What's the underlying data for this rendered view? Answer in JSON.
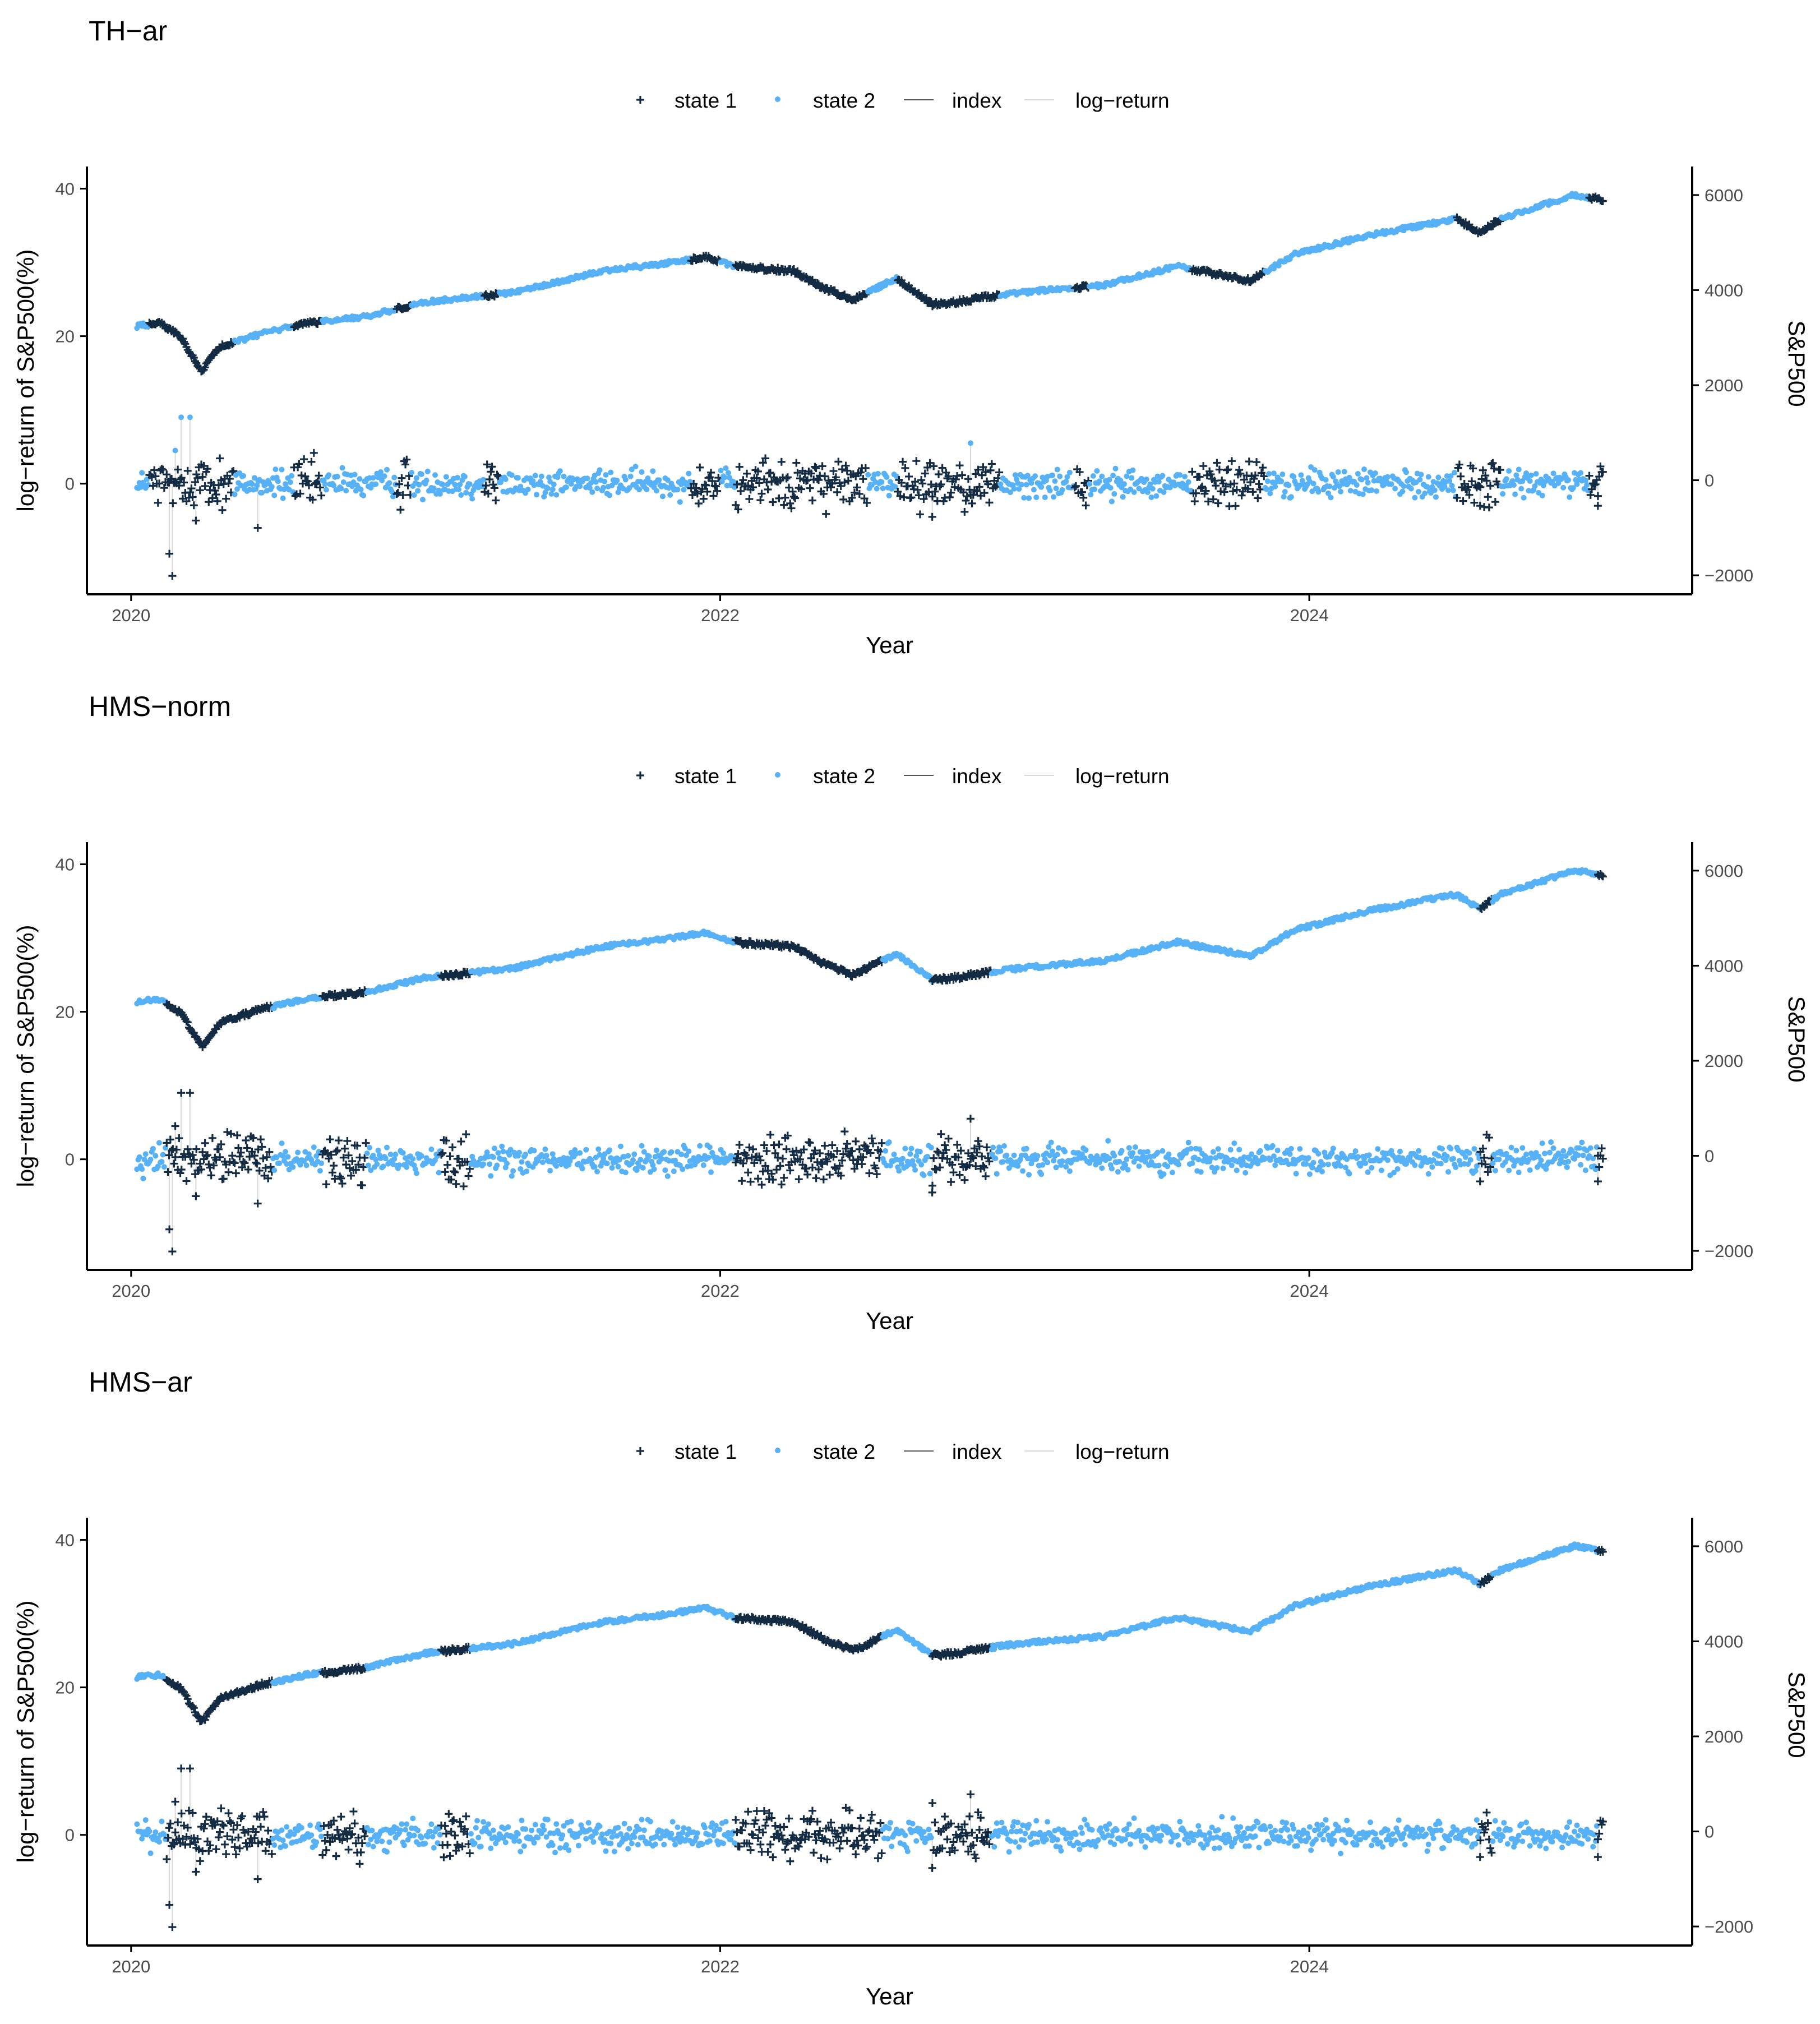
{
  "figure": {
    "colors": {
      "state1": "#132b43",
      "state2": "#56b1f7",
      "index_line": "#555555",
      "return_line": "#d9d9d9",
      "axis": "#000000",
      "text": "#000000",
      "tick_text": "#4d4d4d"
    },
    "legend": {
      "state1": "state 1",
      "state2": "state 2",
      "index": "index",
      "log_return": "log−return"
    }
  },
  "chart_data": [
    {
      "type": "scatter",
      "title": "TH−ar",
      "xlabel": "Year",
      "ylabel": "log−return of S&P500(%)",
      "ylabel_right": "S&P500",
      "x_ticks": [
        "2020",
        "2022",
        "2024"
      ],
      "y_ticks_left": [
        "40",
        "20",
        "0"
      ],
      "y_ticks_right": [
        "6000",
        "4000",
        "2000",
        "0",
        "−2000"
      ],
      "xlim": [
        2019.85,
        2025.3
      ],
      "ylim_left": [
        -15,
        43
      ],
      "ylim_right": [
        -2400,
        6600
      ],
      "index_series": {
        "x": [
          2020.0,
          2020.1,
          2020.17,
          2020.24,
          2020.3,
          2020.45,
          2020.6,
          2020.8,
          2021.0,
          2021.3,
          2021.6,
          2021.8,
          2021.95,
          2022.05,
          2022.25,
          2022.35,
          2022.45,
          2022.6,
          2022.72,
          2022.8,
          2022.95,
          2023.1,
          2023.3,
          2023.55,
          2023.8,
          2023.95,
          2024.2,
          2024.5,
          2024.58,
          2024.65,
          2024.9,
          2025.0
        ],
        "values": [
          3230,
          3300,
          3000,
          2300,
          2800,
          3100,
          3300,
          3450,
          3750,
          3950,
          4400,
          4550,
          4700,
          4500,
          4400,
          4050,
          3800,
          4250,
          3700,
          3750,
          3900,
          4000,
          4100,
          4500,
          4200,
          4750,
          5150,
          5500,
          5200,
          5500,
          6000,
          5900
        ]
      },
      "state1_regimes": [
        [
          2020.06,
          2020.35
        ],
        [
          2020.55,
          2020.65
        ],
        [
          2020.9,
          2020.95
        ],
        [
          2021.2,
          2021.25
        ],
        [
          2021.9,
          2022.0
        ],
        [
          2022.05,
          2022.5
        ],
        [
          2022.6,
          2022.95
        ],
        [
          2023.2,
          2023.25
        ],
        [
          2023.6,
          2023.85
        ],
        [
          2024.5,
          2024.65
        ],
        [
          2024.95,
          2025.0
        ]
      ],
      "returns": {
        "base_sd": 0.9,
        "extremes": [
          {
            "x": 2020.13,
            "v": -9.5,
            "state": 1
          },
          {
            "x": 2020.17,
            "v": 9.0,
            "state": 2
          },
          {
            "x": 2020.2,
            "v": 9.0,
            "state": 2
          },
          {
            "x": 2020.14,
            "v": -12.5,
            "state": 1
          },
          {
            "x": 2020.15,
            "v": 4.5,
            "state": 2
          },
          {
            "x": 2020.22,
            "v": -5.0,
            "state": 1
          },
          {
            "x": 2020.43,
            "v": -6.0,
            "state": 1
          },
          {
            "x": 2022.85,
            "v": 5.5,
            "state": 2
          },
          {
            "x": 2022.72,
            "v": -4.5,
            "state": 1
          },
          {
            "x": 2024.58,
            "v": -3.0,
            "state": 1
          },
          {
            "x": 2024.98,
            "v": -3.0,
            "state": 1
          }
        ]
      }
    },
    {
      "type": "scatter",
      "title": "HMS−norm",
      "xlabel": "Year",
      "ylabel": "log−return of S&P500(%)",
      "ylabel_right": "S&P500",
      "x_ticks": [
        "2020",
        "2022",
        "2024"
      ],
      "y_ticks_left": [
        "40",
        "20",
        "0"
      ],
      "y_ticks_right": [
        "6000",
        "4000",
        "2000",
        "0",
        "−2000"
      ],
      "xlim": [
        2019.85,
        2025.3
      ],
      "ylim_left": [
        -15,
        43
      ],
      "ylim_right": [
        -2400,
        6600
      ],
      "index_series": {
        "x": [
          2020.0,
          2020.1,
          2020.17,
          2020.24,
          2020.3,
          2020.45,
          2020.6,
          2020.8,
          2021.0,
          2021.3,
          2021.6,
          2021.8,
          2021.95,
          2022.05,
          2022.25,
          2022.35,
          2022.45,
          2022.6,
          2022.72,
          2022.8,
          2022.95,
          2023.1,
          2023.3,
          2023.55,
          2023.8,
          2023.95,
          2024.2,
          2024.5,
          2024.58,
          2024.65,
          2024.9,
          2025.0
        ],
        "values": [
          3230,
          3300,
          3000,
          2300,
          2800,
          3100,
          3300,
          3450,
          3750,
          3950,
          4400,
          4550,
          4700,
          4500,
          4400,
          4050,
          3800,
          4250,
          3700,
          3750,
          3900,
          4000,
          4100,
          4500,
          4200,
          4750,
          5150,
          5500,
          5200,
          5500,
          6000,
          5900
        ]
      },
      "state1_regimes": [
        [
          2020.12,
          2020.48
        ],
        [
          2020.65,
          2020.8
        ],
        [
          2021.05,
          2021.15
        ],
        [
          2022.05,
          2022.55
        ],
        [
          2022.72,
          2022.92
        ],
        [
          2024.58,
          2024.62
        ],
        [
          2024.98,
          2025.0
        ]
      ],
      "returns": {
        "base_sd": 0.9,
        "extremes": [
          {
            "x": 2020.13,
            "v": -9.5,
            "state": 1
          },
          {
            "x": 2020.17,
            "v": 9.0,
            "state": 1
          },
          {
            "x": 2020.2,
            "v": 9.0,
            "state": 1
          },
          {
            "x": 2020.14,
            "v": -12.5,
            "state": 1
          },
          {
            "x": 2020.15,
            "v": 4.5,
            "state": 1
          },
          {
            "x": 2020.22,
            "v": -5.0,
            "state": 1
          },
          {
            "x": 2020.43,
            "v": -6.0,
            "state": 1
          },
          {
            "x": 2022.85,
            "v": 5.5,
            "state": 1
          },
          {
            "x": 2022.72,
            "v": -4.5,
            "state": 1
          },
          {
            "x": 2024.58,
            "v": -3.0,
            "state": 1
          },
          {
            "x": 2024.98,
            "v": -3.0,
            "state": 1
          }
        ]
      }
    },
    {
      "type": "scatter",
      "title": "HMS−ar",
      "xlabel": "Year",
      "ylabel": "log−return of S&P500(%)",
      "ylabel_right": "S&P500",
      "x_ticks": [
        "2020",
        "2022",
        "2024"
      ],
      "y_ticks_left": [
        "40",
        "20",
        "0"
      ],
      "y_ticks_right": [
        "6000",
        "4000",
        "2000",
        "0",
        "−2000"
      ],
      "xlim": [
        2019.85,
        2025.3
      ],
      "ylim_left": [
        -15,
        43
      ],
      "ylim_right": [
        -2400,
        6600
      ],
      "index_series": {
        "x": [
          2020.0,
          2020.1,
          2020.17,
          2020.24,
          2020.3,
          2020.45,
          2020.6,
          2020.8,
          2021.0,
          2021.3,
          2021.6,
          2021.8,
          2021.95,
          2022.05,
          2022.25,
          2022.35,
          2022.45,
          2022.6,
          2022.72,
          2022.8,
          2022.95,
          2023.1,
          2023.3,
          2023.55,
          2023.8,
          2023.95,
          2024.2,
          2024.5,
          2024.58,
          2024.65,
          2024.9,
          2025.0
        ],
        "values": [
          3230,
          3300,
          3000,
          2300,
          2800,
          3100,
          3300,
          3450,
          3750,
          3950,
          4400,
          4550,
          4700,
          4500,
          4400,
          4050,
          3800,
          4250,
          3700,
          3750,
          3900,
          4000,
          4100,
          4500,
          4200,
          4750,
          5150,
          5500,
          5200,
          5500,
          6000,
          5900
        ]
      },
      "state1_regimes": [
        [
          2020.12,
          2020.48
        ],
        [
          2020.65,
          2020.8
        ],
        [
          2021.05,
          2021.15
        ],
        [
          2022.05,
          2022.55
        ],
        [
          2022.72,
          2022.92
        ],
        [
          2024.58,
          2024.62
        ],
        [
          2024.98,
          2025.0
        ]
      ],
      "returns": {
        "base_sd": 0.9,
        "extremes": [
          {
            "x": 2020.13,
            "v": -9.5,
            "state": 1
          },
          {
            "x": 2020.17,
            "v": 9.0,
            "state": 1
          },
          {
            "x": 2020.2,
            "v": 9.0,
            "state": 1
          },
          {
            "x": 2020.14,
            "v": -12.5,
            "state": 1
          },
          {
            "x": 2020.15,
            "v": 4.5,
            "state": 1
          },
          {
            "x": 2020.22,
            "v": -5.0,
            "state": 1
          },
          {
            "x": 2020.43,
            "v": -6.0,
            "state": 1
          },
          {
            "x": 2022.85,
            "v": 5.5,
            "state": 1
          },
          {
            "x": 2022.72,
            "v": -4.5,
            "state": 1
          },
          {
            "x": 2024.58,
            "v": -3.0,
            "state": 1
          },
          {
            "x": 2024.98,
            "v": -3.0,
            "state": 1
          }
        ]
      }
    }
  ]
}
